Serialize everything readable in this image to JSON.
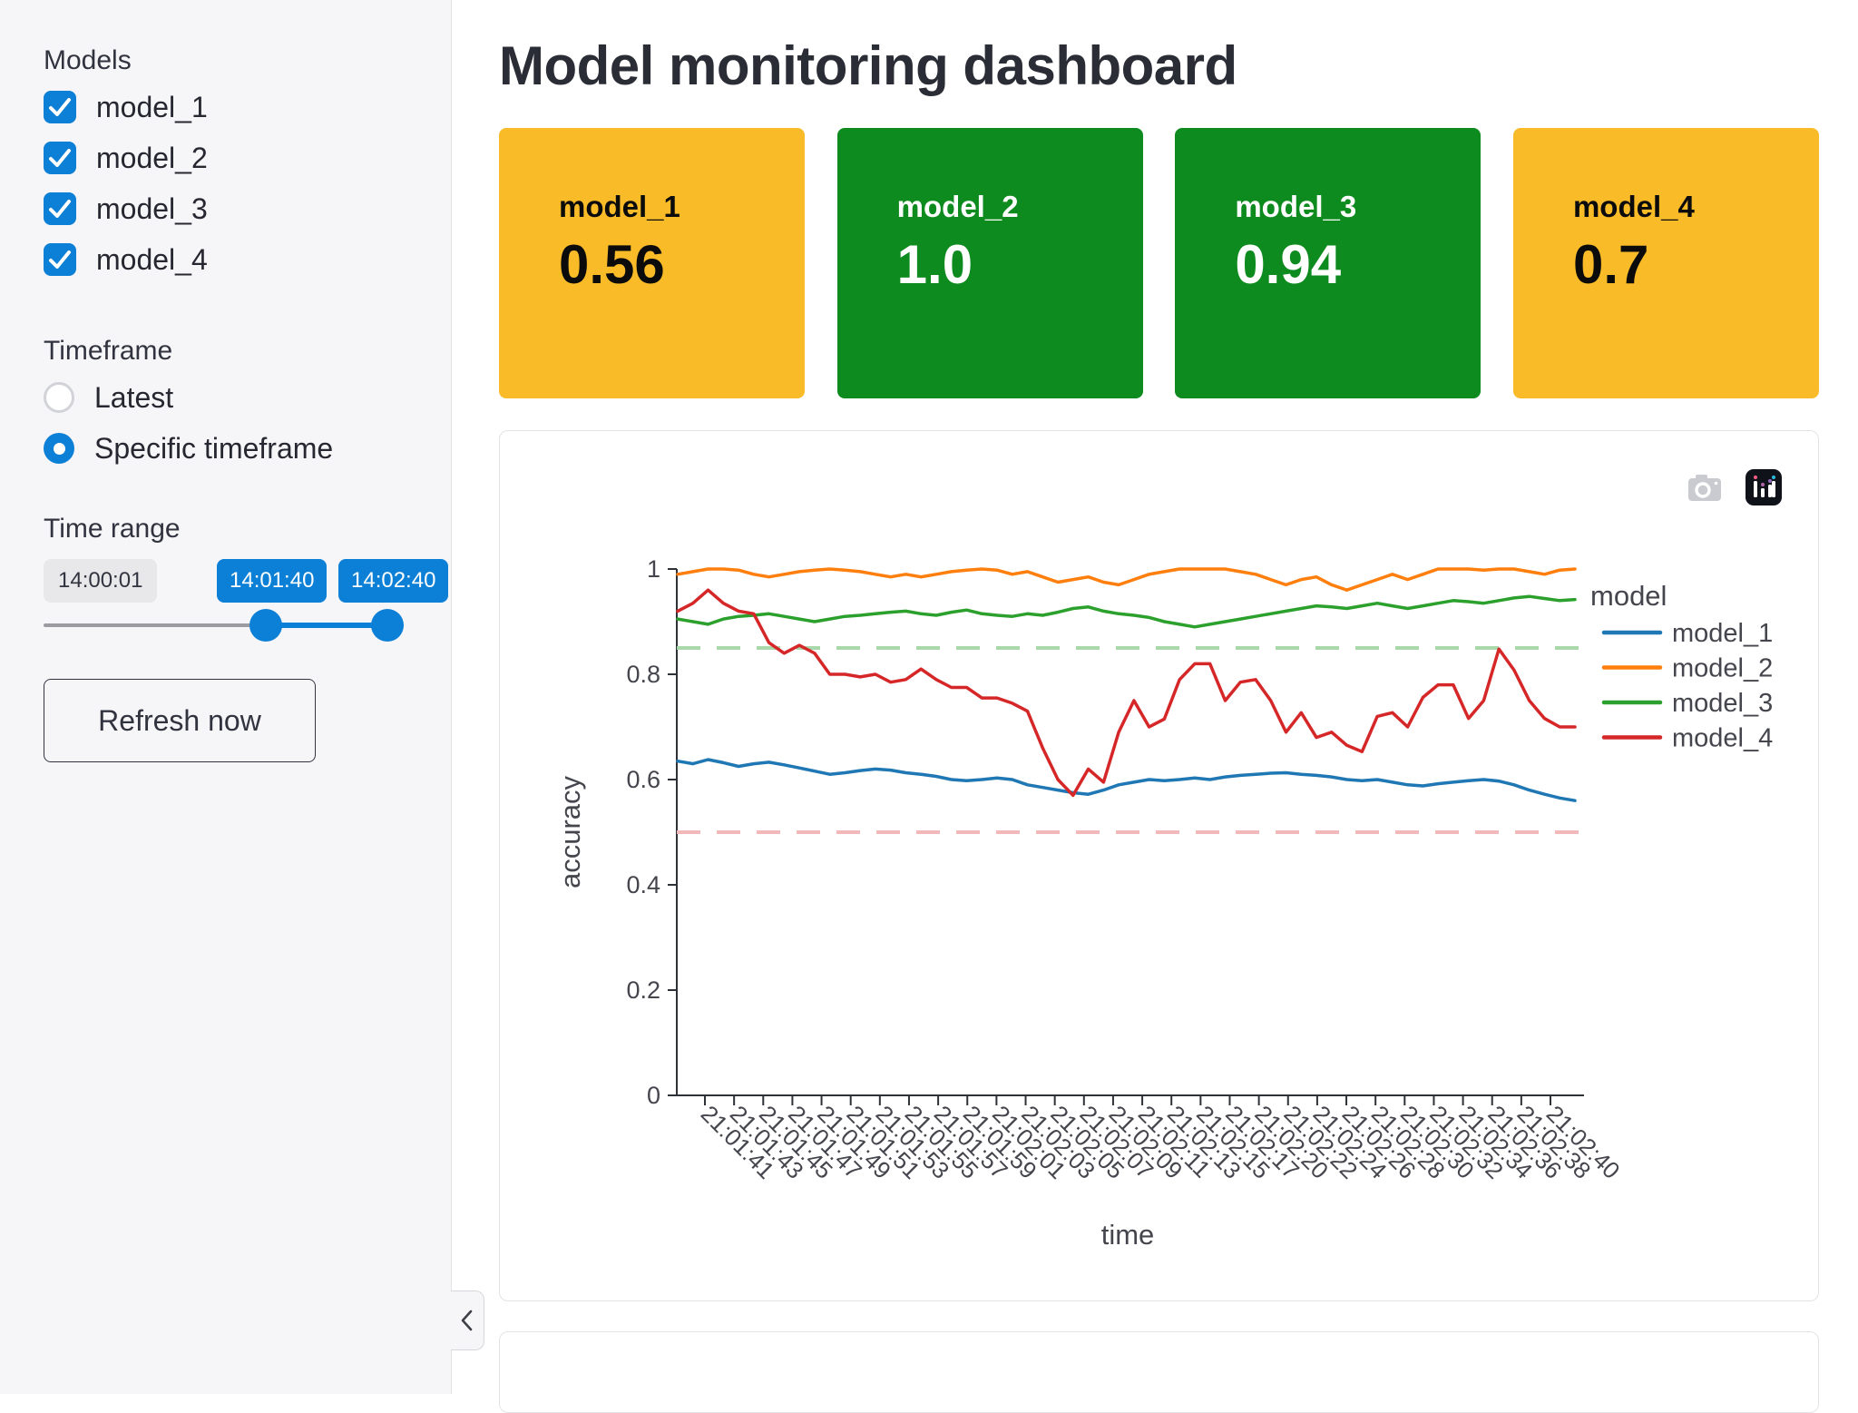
{
  "header": {
    "title": "Model monitoring dashboard"
  },
  "sidebar": {
    "models_label": "Models",
    "models": [
      {
        "label": "model_1",
        "checked": true
      },
      {
        "label": "model_2",
        "checked": true
      },
      {
        "label": "model_3",
        "checked": true
      },
      {
        "label": "model_4",
        "checked": true
      }
    ],
    "timeframe_label": "Timeframe",
    "timeframe_options": [
      {
        "label": "Latest",
        "selected": false
      },
      {
        "label": "Specific timeframe",
        "selected": true
      }
    ],
    "time_range_label": "Time range",
    "slider": {
      "min_label": "14:00:01",
      "start_label": "14:01:40",
      "end_label": "14:02:40"
    },
    "refresh_button_label": "Refresh now",
    "collapse_icon": "chevron-left-icon"
  },
  "metric_cards": [
    {
      "label": "model_1",
      "value": "0.56",
      "bg": "#f9bb28",
      "text": "#0b0b0b"
    },
    {
      "label": "model_2",
      "value": "1.0",
      "bg": "#0e8b1f",
      "text": "#ffffff"
    },
    {
      "label": "model_3",
      "value": "0.94",
      "bg": "#0e8b1f",
      "text": "#ffffff"
    },
    {
      "label": "model_4",
      "value": "0.7",
      "bg": "#f9bb28",
      "text": "#0b0b0b"
    }
  ],
  "chart": {
    "modebar_icons": [
      "camera-icon",
      "plotly-logo-icon"
    ]
  },
  "colors": {
    "accent_blue": "#0c80d6",
    "card_amber": "#f9bb28",
    "card_green": "#0e8b1f",
    "threshold_green": "#a9d8aa",
    "threshold_pink": "#f3b9ba"
  },
  "chart_data": {
    "type": "line",
    "title": "",
    "xlabel": "time",
    "ylabel": "accuracy",
    "ylim": [
      0,
      1
    ],
    "grid": false,
    "legend_position": "right",
    "legend_title": "model",
    "y_ticks": [
      "0",
      "0.2",
      "0.4",
      "0.6",
      "0.8",
      "1"
    ],
    "x_tick_labels": [
      "21:01:41",
      "21:01:43",
      "21:01:45",
      "21:01:47",
      "21:01:49",
      "21:01:51",
      "21:01:53",
      "21:01:55",
      "21:01:57",
      "21:01:59",
      "21:02:01",
      "21:02:03",
      "21:02:05",
      "21:02:07",
      "21:02:09",
      "21:02:11",
      "21:02:13",
      "21:02:15",
      "21:02:17",
      "21:02:20",
      "21:02:22",
      "21:02:24",
      "21:02:26",
      "21:02:28",
      "21:02:30",
      "21:02:32",
      "21:02:34",
      "21:02:36",
      "21:02:38",
      "21:02:40"
    ],
    "thresholds": [
      {
        "y": 0.85,
        "color": "#a9d8aa"
      },
      {
        "y": 0.5,
        "color": "#f3b9ba"
      }
    ],
    "series": [
      {
        "name": "model_1",
        "color": "#1f77b4",
        "values": [
          0.635,
          0.63,
          0.638,
          0.632,
          0.625,
          0.63,
          0.633,
          0.628,
          0.622,
          0.616,
          0.61,
          0.613,
          0.617,
          0.62,
          0.618,
          0.613,
          0.61,
          0.606,
          0.6,
          0.598,
          0.6,
          0.603,
          0.6,
          0.59,
          0.585,
          0.58,
          0.575,
          0.572,
          0.58,
          0.59,
          0.595,
          0.6,
          0.598,
          0.6,
          0.603,
          0.6,
          0.605,
          0.608,
          0.61,
          0.612,
          0.613,
          0.61,
          0.608,
          0.605,
          0.6,
          0.598,
          0.6,
          0.595,
          0.59,
          0.588,
          0.592,
          0.595,
          0.598,
          0.6,
          0.597,
          0.59,
          0.58,
          0.572,
          0.565,
          0.56
        ]
      },
      {
        "name": "model_2",
        "color": "#ff7f0e",
        "values": [
          0.99,
          0.995,
          1.0,
          1.0,
          0.998,
          0.99,
          0.985,
          0.99,
          0.995,
          0.998,
          1.0,
          0.998,
          0.995,
          0.99,
          0.985,
          0.99,
          0.985,
          0.99,
          0.995,
          0.998,
          1.0,
          0.998,
          0.99,
          0.995,
          0.985,
          0.975,
          0.98,
          0.985,
          0.975,
          0.97,
          0.98,
          0.99,
          0.995,
          1.0,
          1.0,
          1.0,
          1.0,
          0.995,
          0.99,
          0.98,
          0.97,
          0.98,
          0.985,
          0.97,
          0.96,
          0.97,
          0.98,
          0.99,
          0.98,
          0.99,
          1.0,
          1.0,
          1.0,
          0.998,
          1.0,
          1.0,
          0.995,
          0.99,
          0.998,
          1.0
        ]
      },
      {
        "name": "model_3",
        "color": "#2ca02c",
        "values": [
          0.905,
          0.9,
          0.895,
          0.905,
          0.91,
          0.912,
          0.915,
          0.91,
          0.905,
          0.9,
          0.905,
          0.91,
          0.912,
          0.915,
          0.918,
          0.92,
          0.915,
          0.912,
          0.918,
          0.922,
          0.915,
          0.912,
          0.91,
          0.915,
          0.912,
          0.918,
          0.925,
          0.928,
          0.92,
          0.915,
          0.912,
          0.908,
          0.9,
          0.895,
          0.89,
          0.895,
          0.9,
          0.905,
          0.91,
          0.915,
          0.92,
          0.925,
          0.93,
          0.928,
          0.925,
          0.93,
          0.935,
          0.93,
          0.925,
          0.93,
          0.935,
          0.94,
          0.938,
          0.935,
          0.94,
          0.945,
          0.948,
          0.944,
          0.94,
          0.942
        ]
      },
      {
        "name": "model_4",
        "color": "#d62728",
        "values": [
          0.92,
          0.935,
          0.96,
          0.935,
          0.92,
          0.915,
          0.86,
          0.84,
          0.855,
          0.84,
          0.8,
          0.8,
          0.795,
          0.8,
          0.785,
          0.79,
          0.81,
          0.79,
          0.775,
          0.775,
          0.755,
          0.755,
          0.745,
          0.73,
          0.66,
          0.6,
          0.57,
          0.62,
          0.595,
          0.69,
          0.75,
          0.7,
          0.715,
          0.79,
          0.82,
          0.82,
          0.75,
          0.785,
          0.79,
          0.75,
          0.69,
          0.727,
          0.68,
          0.69,
          0.665,
          0.653,
          0.72,
          0.727,
          0.7,
          0.756,
          0.78,
          0.78,
          0.716,
          0.75,
          0.848,
          0.808,
          0.75,
          0.716,
          0.7,
          0.7
        ]
      }
    ]
  }
}
